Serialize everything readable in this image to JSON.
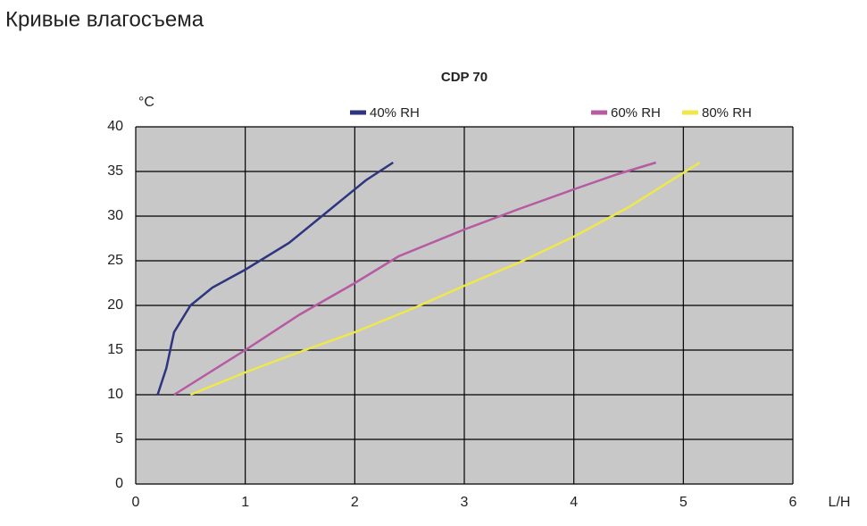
{
  "header": {
    "title": "Кривые влагосъема"
  },
  "chart_data": {
    "type": "line",
    "title": "CDP 70",
    "x_label": "L/H",
    "y_label": "°C",
    "xlim": [
      0,
      6
    ],
    "xticks": [
      0,
      1,
      2,
      3,
      4,
      5,
      6
    ],
    "ylim": [
      0,
      40
    ],
    "yticks": [
      0,
      5,
      10,
      15,
      20,
      25,
      30,
      35,
      40
    ],
    "grid": true,
    "series": [
      {
        "name": "40% RH",
        "color": "#2e3580",
        "x": [
          0.2,
          0.28,
          0.35,
          0.5,
          0.7,
          1.0,
          1.4,
          1.8,
          2.1,
          2.35
        ],
        "values": [
          10,
          13,
          17,
          20,
          22,
          24,
          27,
          31,
          34,
          36
        ]
      },
      {
        "name": "60% RH",
        "color": "#b65aa2",
        "x": [
          0.35,
          1,
          1.5,
          2,
          2.4,
          3,
          3.5,
          4,
          4.4,
          4.75
        ],
        "values": [
          10,
          15,
          19,
          22.5,
          25.5,
          28.5,
          30.8,
          33,
          34.7,
          36
        ]
      },
      {
        "name": "80% RH",
        "color": "#eee84a",
        "x": [
          0.5,
          1,
          1.5,
          2,
          2.5,
          3,
          3.5,
          4,
          4.5,
          5.15
        ],
        "values": [
          10,
          12.5,
          14.8,
          17,
          19.5,
          22.2,
          24.8,
          27.7,
          31,
          36
        ]
      }
    ]
  }
}
